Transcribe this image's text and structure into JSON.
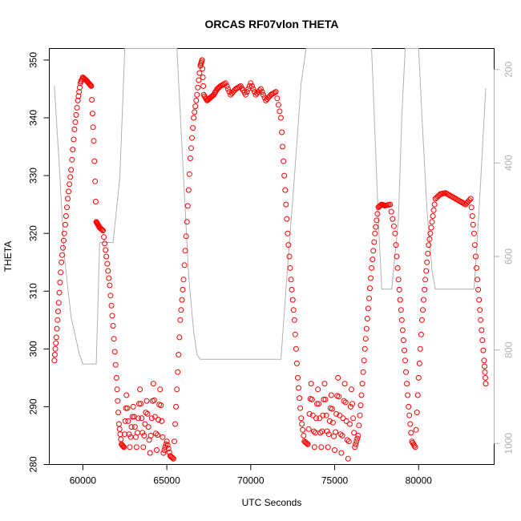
{
  "chart_data": {
    "type": "scatter",
    "title": "ORCAS RF07vlon THETA",
    "xlabel": "UTC Seconds",
    "ylabel": "THETA",
    "xlim": [
      58000,
      84500
    ],
    "ylim": [
      280,
      352
    ],
    "xticks": [
      60000,
      65000,
      70000,
      75000,
      80000
    ],
    "yticks": [
      280,
      290,
      300,
      310,
      320,
      330,
      340,
      350
    ],
    "grid": false,
    "series": [
      {
        "color": "#ff0000",
        "marker": "open-circle",
        "x": [
          58300,
          58420,
          58560,
          58720,
          58900,
          59100,
          59300,
          59500,
          59700,
          59850,
          60000,
          60200,
          60350,
          60500,
          60650,
          60800,
          60900,
          61000,
          61200,
          61400,
          61600,
          61800,
          62000,
          62150,
          62300,
          62450,
          62600,
          62800,
          63000,
          63200,
          63400,
          63600,
          63800,
          64000,
          64200,
          64400,
          64600,
          64800,
          65000,
          65200,
          65400,
          65600,
          65800,
          66000,
          66200,
          66400,
          66600,
          66800,
          67000,
          67100,
          67200,
          67400,
          67600,
          67800,
          68000,
          68200,
          68500,
          68800,
          69100,
          69400,
          69700,
          70000,
          70300,
          70600,
          70900,
          71200,
          71500,
          71800,
          72000,
          72200,
          72400,
          72600,
          72800,
          73000,
          73200,
          73400,
          73600,
          73800,
          74000,
          74200,
          74400,
          74600,
          74800,
          75000,
          75200,
          75400,
          75600,
          75800,
          76000,
          76200,
          76400,
          76600,
          76800,
          77000,
          77200,
          77400,
          77600,
          77800,
          78000,
          78300,
          78600,
          78800,
          79000,
          79200,
          79400,
          79600,
          79800,
          80000,
          80200,
          80400,
          80600,
          80800,
          81000,
          81300,
          81600,
          81900,
          82200,
          82500,
          82800,
          83100,
          83300,
          83500,
          83700,
          83900,
          84000
        ],
        "y": [
          298,
          302,
          308,
          315,
          320,
          326,
          331,
          338,
          343,
          346,
          347,
          346.5,
          346,
          345.5,
          336,
          322,
          321.5,
          321,
          320.5,
          316,
          311,
          304,
          295,
          287,
          283.5,
          283,
          292,
          283,
          290,
          283,
          293,
          283,
          291,
          282,
          294,
          282.5,
          293,
          282,
          284,
          281.5,
          281,
          293,
          305,
          312,
          322,
          333,
          340,
          344,
          349,
          350,
          344,
          343,
          343.5,
          344,
          345,
          345.5,
          346,
          344,
          345,
          345.5,
          344,
          346,
          344,
          345,
          343,
          344,
          344.5,
          340,
          330,
          320,
          312,
          305,
          295,
          288,
          284,
          283.5,
          294,
          283,
          293,
          283,
          294,
          283,
          292,
          282.5,
          295,
          282,
          294,
          281,
          293,
          283,
          285,
          292,
          300,
          307,
          314,
          320,
          324.5,
          325,
          324.8,
          325,
          320,
          312,
          305,
          298,
          290,
          284,
          283,
          295,
          305,
          312,
          318,
          322,
          326,
          326.8,
          327,
          326.5,
          326,
          325.5,
          325,
          326,
          320,
          312,
          305,
          298,
          294
        ]
      },
      {
        "name": "",
        "axis": "right",
        "color": "#b0b0b0",
        "marker": "line",
        "x": [
          58300,
          58600,
          58900,
          59300,
          59800,
          60000,
          60300,
          60600,
          60800,
          61000,
          61200,
          61400,
          61800,
          62200,
          62500,
          62800,
          63500,
          64000,
          64500,
          65000,
          65300,
          65600,
          66000,
          66300,
          66600,
          66800,
          67000,
          67500,
          68000,
          69000,
          70000,
          71000,
          71800,
          72200,
          72600,
          73000,
          73300,
          73600,
          74000,
          74500,
          75000,
          75500,
          76000,
          76500,
          76900,
          77200,
          77600,
          77800,
          78100,
          78400,
          78800,
          79000,
          79200,
          79600,
          80000,
          80200,
          80500,
          80800,
          81000,
          81500,
          82000,
          82500,
          83000,
          83300,
          83600,
          84000
        ],
        "y": [
          235,
          410,
          600,
          730,
          810,
          830,
          830,
          830,
          830,
          570,
          570,
          570,
          570,
          430,
          150,
          140,
          140,
          140,
          140,
          140,
          140,
          150,
          430,
          640,
          760,
          810,
          820,
          820,
          820,
          820,
          820,
          820,
          820,
          620,
          430,
          230,
          140,
          140,
          140,
          140,
          140,
          140,
          140,
          140,
          140,
          150,
          520,
          670,
          670,
          670,
          520,
          300,
          140,
          140,
          140,
          300,
          500,
          630,
          670,
          670,
          670,
          670,
          670,
          670,
          500,
          240
        ]
      }
    ],
    "y2lim": [
      1045,
      155
    ],
    "y2ticks": [
      200,
      400,
      600,
      800,
      1000
    ]
  }
}
